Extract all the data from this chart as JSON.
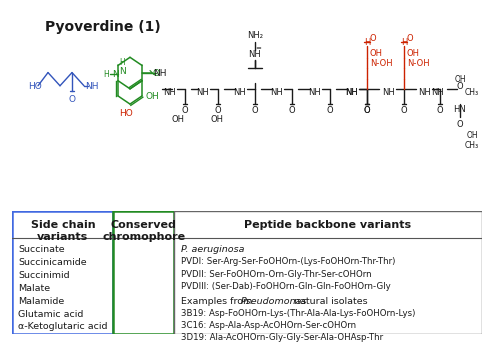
{
  "title": "Pyoverdine (1)",
  "box1_header": "Side chain\nvariants",
  "box1_items": [
    "Succinate",
    "Succinicamide",
    "Succinimid",
    "Malate",
    "Malamide",
    "Glutamic acid",
    "α-Ketoglutaric acid"
  ],
  "box2_header": "Conserved\nchromophore",
  "box3_header": "Peptide backbone variants",
  "box3_section1_title": "P. aeruginosa",
  "box3_section1_items": [
    "PVDI: Ser-Arg-Ser-FoOHOrn-(Lys-FoOHOrn-Thr-Thr)",
    "PVDII: Ser-FoOHOrn-Orn-Gly-Thr-Ser-cOHOrn",
    "PVDIII: (Ser-Dab)-FoOHOrn-Gln-Gln-FoOHOrn-Gly"
  ],
  "box3_section2_items": [
    "3B19: Asp-FoOHOrn-Lys-(Thr-Ala-Ala-Lys-FoOHOrn-Lys)",
    "3C16: Asp-Ala-Asp-AcOHOrn-Ser-cOHOrn",
    "3D19: Ala-AcOHOrn-Gly-Gly-Ser-Ala-OHAsp-Thr"
  ],
  "box1_border_color": "#4169E1",
  "box2_border_color": "#228B22",
  "box3_border_color": "#666666",
  "background_color": "#ffffff",
  "text_color": "#000000",
  "blue": "#3355BB",
  "green": "#228B22",
  "dark": "#1a1a1a",
  "red": "#CC2200",
  "title_fontsize": 10,
  "header_fontsize": 8,
  "body_fontsize": 6.8,
  "small_fontsize": 6.2
}
